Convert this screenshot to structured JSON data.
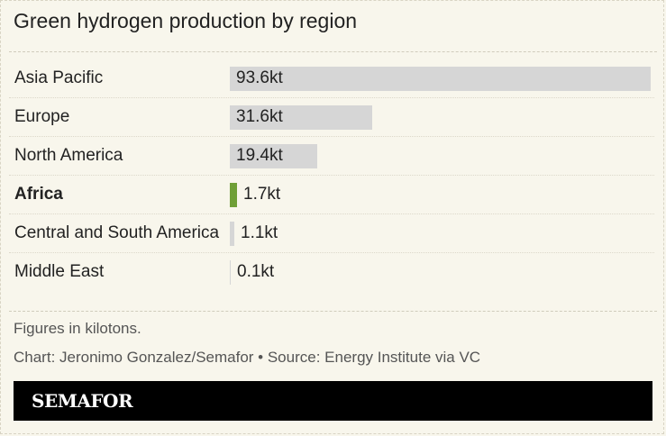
{
  "title": "Green hydrogen production by region",
  "note": "Figures in kilotons.",
  "credit": "Chart: Jeronimo Gonzalez/Semafor • Source: Energy Institute via VC",
  "logo_text": "SEMAFOR",
  "colors": {
    "background": "#f8f6ec",
    "bar": "#d6d6d6",
    "highlight_bar": "#6f9f37",
    "footer": "#000000"
  },
  "chart_data": {
    "type": "bar",
    "orientation": "horizontal",
    "categories": [
      "Asia Pacific",
      "Europe",
      "North America",
      "Africa",
      "Central and South America",
      "Middle East"
    ],
    "values": [
      93.6,
      31.6,
      19.4,
      1.7,
      1.1,
      0.1
    ],
    "value_labels": [
      "93.6kt",
      "31.6kt",
      "19.4kt",
      "1.7kt",
      "1.1kt",
      "0.1kt"
    ],
    "highlight": "Africa",
    "xlim": [
      0,
      93.6
    ],
    "title": "Green hydrogen production by region"
  }
}
